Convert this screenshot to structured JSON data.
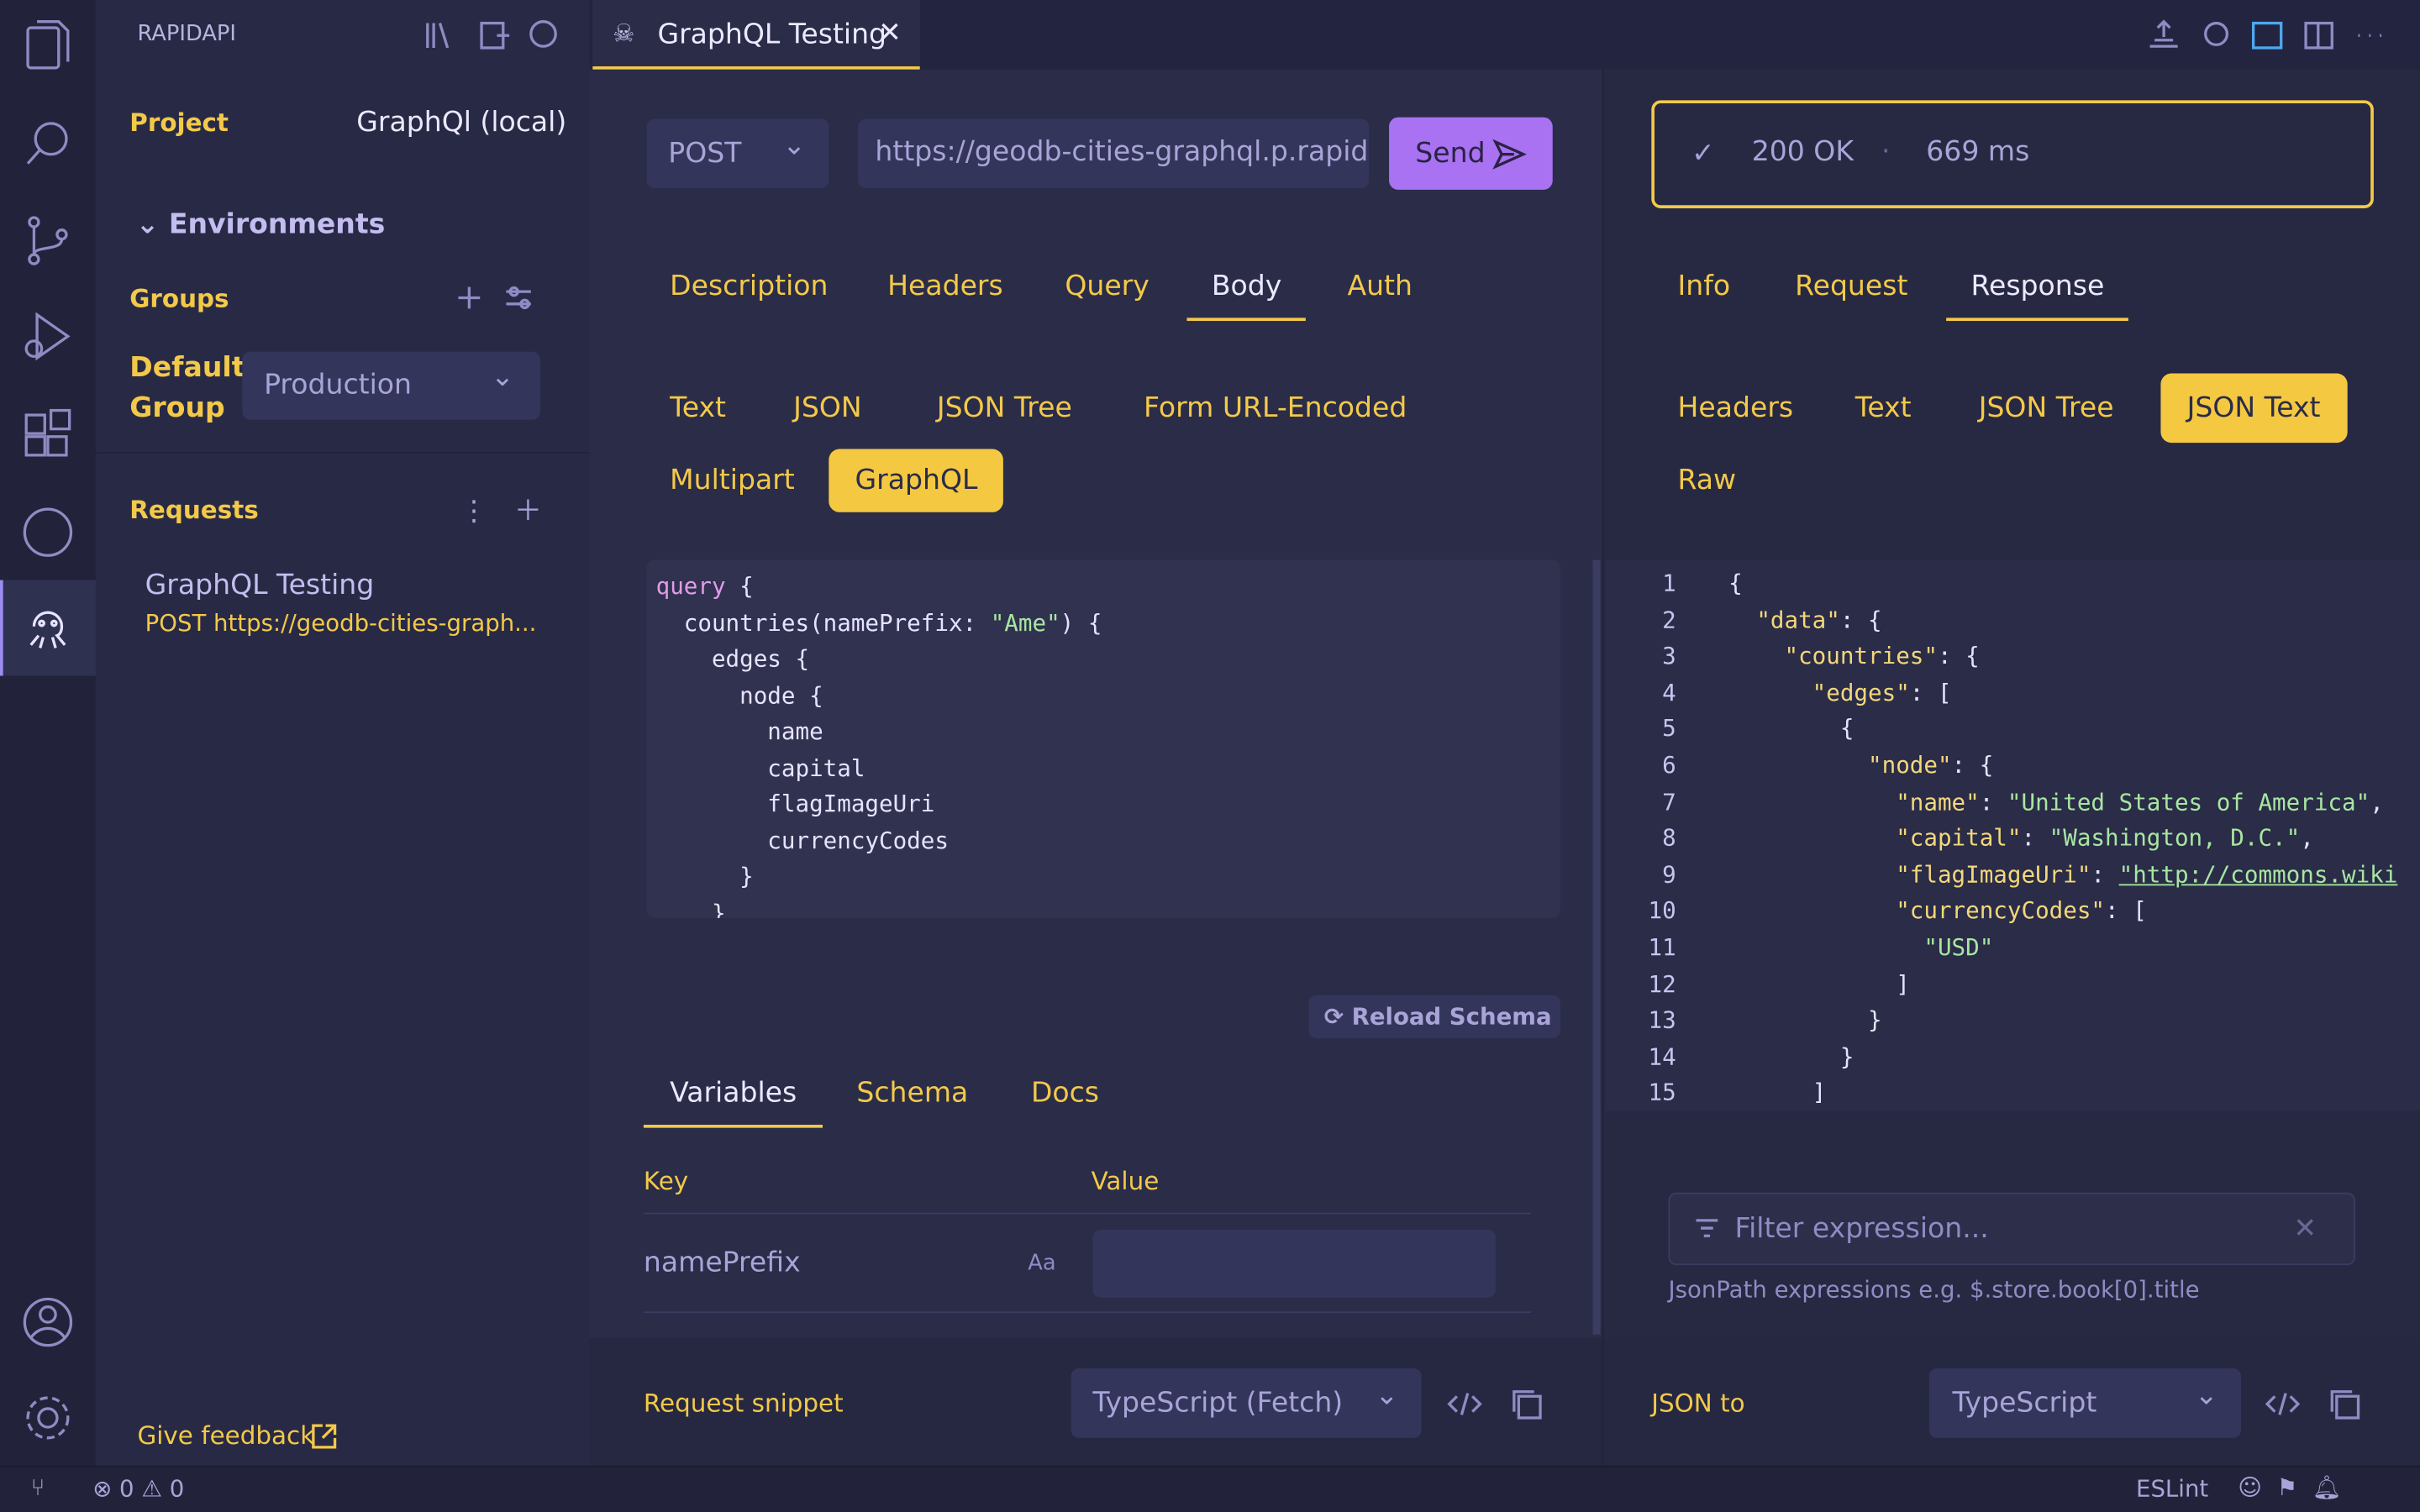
{
  "sidebar": {
    "title": "RAPIDAPI",
    "project_label": "Project",
    "project_value": "GraphQl (local)",
    "environments": "Environments",
    "groups": "Groups",
    "default_group_label": "Default Group",
    "default_group_value": "Production",
    "requests": "Requests",
    "request_items": [
      {
        "name": "GraphQL Testing",
        "detail": "POST https://geodb-cities-graph..."
      }
    ],
    "feedback": "Give feedback"
  },
  "tab": {
    "title": "GraphQL Testing"
  },
  "request": {
    "method": "POST",
    "url": "https://geodb-cities-graphql.p.rapida",
    "send": "Send",
    "tabs": [
      "Description",
      "Headers",
      "Query",
      "Body",
      "Auth"
    ],
    "active_tab": 3,
    "body_types": [
      "Text",
      "JSON",
      "JSON Tree",
      "Form URL-Encoded",
      "Multipart",
      "GraphQL"
    ],
    "active_body_type": 5,
    "query_lines": [
      "query {",
      "  countries(namePrefix: \"Ame\") {",
      "    edges {",
      "      node {",
      "        name",
      "        capital",
      "        flagImageUri",
      "        currencyCodes",
      "      }",
      "    }"
    ],
    "reload": "Reload Schema",
    "sub_tabs": [
      "Variables",
      "Schema",
      "Docs"
    ],
    "active_sub_tab": 0,
    "variables": {
      "key_header": "Key",
      "value_header": "Value",
      "rows": [
        {
          "key": "namePrefix",
          "type": "Aa"
        }
      ]
    },
    "snippet_label": "Request snippet",
    "snippet_lang": "TypeScript (Fetch)"
  },
  "response": {
    "status": "200 OK",
    "separator": "·",
    "time": "669 ms",
    "tabs": [
      "Info",
      "Request",
      "Response"
    ],
    "active_tab": 2,
    "formats": [
      "Headers",
      "Text",
      "JSON Tree",
      "JSON Text",
      "Raw"
    ],
    "active_format": 3,
    "lines": [
      {
        "n": 1,
        "text": "{"
      },
      {
        "n": 2,
        "text": "  \"data\": {"
      },
      {
        "n": 3,
        "text": "    \"countries\": {"
      },
      {
        "n": 4,
        "text": "      \"edges\": ["
      },
      {
        "n": 5,
        "text": "        {"
      },
      {
        "n": 6,
        "text": "          \"node\": {"
      },
      {
        "n": 7,
        "text": "            \"name\": \"United States of America\","
      },
      {
        "n": 8,
        "text": "            \"capital\": \"Washington, D.C.\","
      },
      {
        "n": 9,
        "text": "            \"flagImageUri\": \"http://commons.wiki"
      },
      {
        "n": 10,
        "text": "            \"currencyCodes\": ["
      },
      {
        "n": 11,
        "text": "              \"USD\""
      },
      {
        "n": 12,
        "text": "            ]"
      },
      {
        "n": 13,
        "text": "          }"
      },
      {
        "n": 14,
        "text": "        }"
      },
      {
        "n": 15,
        "text": "      ]"
      }
    ],
    "filter_placeholder": "Filter expression...",
    "filter_hint": "JsonPath expressions e.g. $.store.book[0].title",
    "json_to": "JSON to",
    "json_to_lang": "TypeScript"
  },
  "status_bar": {
    "errors": 0,
    "warnings": 0,
    "linter": "ESLint"
  }
}
